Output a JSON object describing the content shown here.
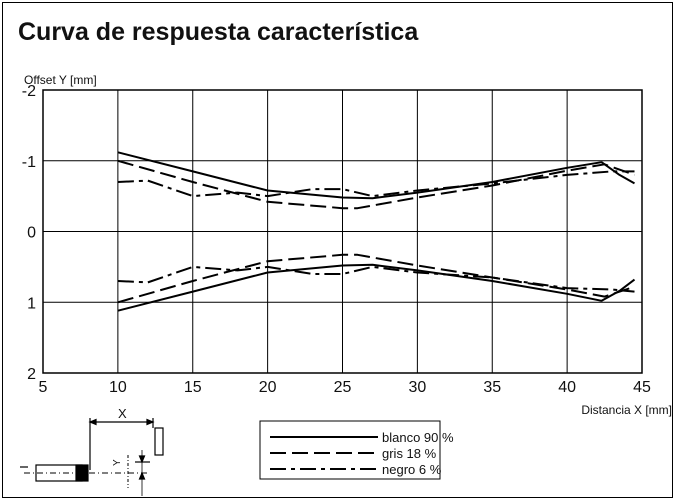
{
  "title": "Curva de respuesta característica",
  "chart_data": {
    "type": "line",
    "xlabel": "Distancia X [mm]",
    "ylabel": "Offset Y [mm]",
    "xlim": [
      5,
      45
    ],
    "ylim": [
      -2,
      2
    ],
    "y_axis_inverted": true,
    "grid": true,
    "x_ticks": [
      "5",
      "10",
      "15",
      "20",
      "25",
      "30",
      "35",
      "40",
      "45"
    ],
    "y_ticks": [
      "-2",
      "-1",
      "0",
      "1",
      "2"
    ],
    "legend_position": "bottom-center",
    "series": [
      {
        "name": "blanco 90 %",
        "style": "solid",
        "upper": [
          [
            10,
            -1.12
          ],
          [
            15,
            -0.85
          ],
          [
            20,
            -0.58
          ],
          [
            25,
            -0.48
          ],
          [
            27,
            -0.47
          ],
          [
            30,
            -0.55
          ],
          [
            35,
            -0.7
          ],
          [
            40,
            -0.9
          ],
          [
            42.3,
            -0.98
          ],
          [
            43.5,
            -0.8
          ],
          [
            44.5,
            -0.68
          ]
        ],
        "lower": [
          [
            10,
            1.12
          ],
          [
            15,
            0.85
          ],
          [
            20,
            0.58
          ],
          [
            25,
            0.48
          ],
          [
            27,
            0.47
          ],
          [
            30,
            0.55
          ],
          [
            35,
            0.7
          ],
          [
            40,
            0.88
          ],
          [
            42.3,
            0.98
          ],
          [
            43.5,
            0.84
          ],
          [
            44.5,
            0.68
          ]
        ]
      },
      {
        "name": "gris 18 %",
        "style": "dashed",
        "upper": [
          [
            10,
            -1.0
          ],
          [
            15,
            -0.7
          ],
          [
            20,
            -0.42
          ],
          [
            25,
            -0.33
          ],
          [
            26,
            -0.33
          ],
          [
            30,
            -0.48
          ],
          [
            35,
            -0.65
          ],
          [
            40,
            -0.86
          ],
          [
            42.5,
            -0.95
          ],
          [
            44.5,
            -0.8
          ]
        ],
        "lower": [
          [
            10,
            1.0
          ],
          [
            15,
            0.7
          ],
          [
            20,
            0.42
          ],
          [
            25,
            0.33
          ],
          [
            26,
            0.33
          ],
          [
            30,
            0.48
          ],
          [
            35,
            0.65
          ],
          [
            40,
            0.82
          ],
          [
            42.5,
            0.92
          ],
          [
            44.5,
            0.78
          ]
        ]
      },
      {
        "name": "negro 6 %",
        "style": "dash-dot",
        "upper": [
          [
            10,
            -0.7
          ],
          [
            12,
            -0.72
          ],
          [
            15,
            -0.5
          ],
          [
            18,
            -0.55
          ],
          [
            20,
            -0.5
          ],
          [
            23,
            -0.6
          ],
          [
            25,
            -0.6
          ],
          [
            27,
            -0.5
          ],
          [
            30,
            -0.58
          ],
          [
            35,
            -0.68
          ],
          [
            40,
            -0.8
          ],
          [
            43,
            -0.85
          ],
          [
            44.5,
            -0.85
          ]
        ],
        "lower": [
          [
            10,
            0.7
          ],
          [
            12,
            0.72
          ],
          [
            15,
            0.5
          ],
          [
            18,
            0.55
          ],
          [
            20,
            0.5
          ],
          [
            23,
            0.6
          ],
          [
            25,
            0.6
          ],
          [
            27,
            0.5
          ],
          [
            30,
            0.58
          ],
          [
            35,
            0.65
          ],
          [
            40,
            0.8
          ],
          [
            43,
            0.82
          ],
          [
            44.5,
            0.85
          ]
        ]
      }
    ],
    "diagram_label": "X"
  }
}
